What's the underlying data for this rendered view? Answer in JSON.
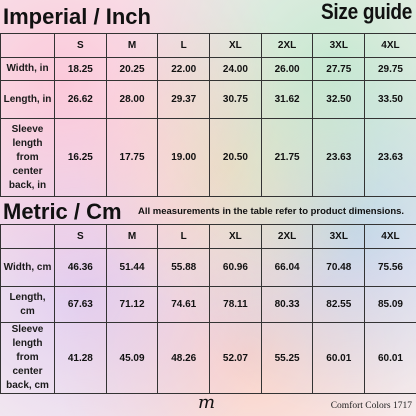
{
  "imperial": {
    "title": "Imperial / Inch",
    "headers": [
      "",
      "S",
      "M",
      "L",
      "XL",
      "2XL",
      "3XL",
      "4XL"
    ],
    "rows": [
      {
        "label": "Width, in",
        "values": [
          "18.25",
          "20.25",
          "22.00",
          "24.00",
          "26.00",
          "27.75",
          "29.75"
        ]
      },
      {
        "label": "Length, in",
        "values": [
          "26.62",
          "28.00",
          "29.37",
          "30.75",
          "31.62",
          "32.50",
          "33.50"
        ]
      },
      {
        "label": "Sleeve length from center back, in",
        "values": [
          "16.25",
          "17.75",
          "19.00",
          "20.50",
          "21.75",
          "23.63",
          "23.63"
        ]
      }
    ]
  },
  "size_guide_label": "Size guide",
  "metric": {
    "title": "Metric / Cm",
    "note": "All measurements in the table refer to product dimensions.",
    "headers": [
      "",
      "S",
      "M",
      "L",
      "XL",
      "2XL",
      "3XL",
      "4XL"
    ],
    "rows": [
      {
        "label": "Width, cm",
        "values": [
          "46.36",
          "51.44",
          "55.88",
          "60.96",
          "66.04",
          "70.48",
          "75.56"
        ]
      },
      {
        "label": "Length, cm",
        "values": [
          "67.63",
          "71.12",
          "74.61",
          "78.11",
          "80.33",
          "82.55",
          "85.09"
        ]
      },
      {
        "label": "Sleeve length from center back, cm",
        "values": [
          "41.28",
          "45.09",
          "48.26",
          "52.07",
          "55.25",
          "60.01",
          "60.01"
        ]
      }
    ]
  },
  "footer": {
    "logo_glyph": "m",
    "brand": "Comfort Colors 1717"
  }
}
